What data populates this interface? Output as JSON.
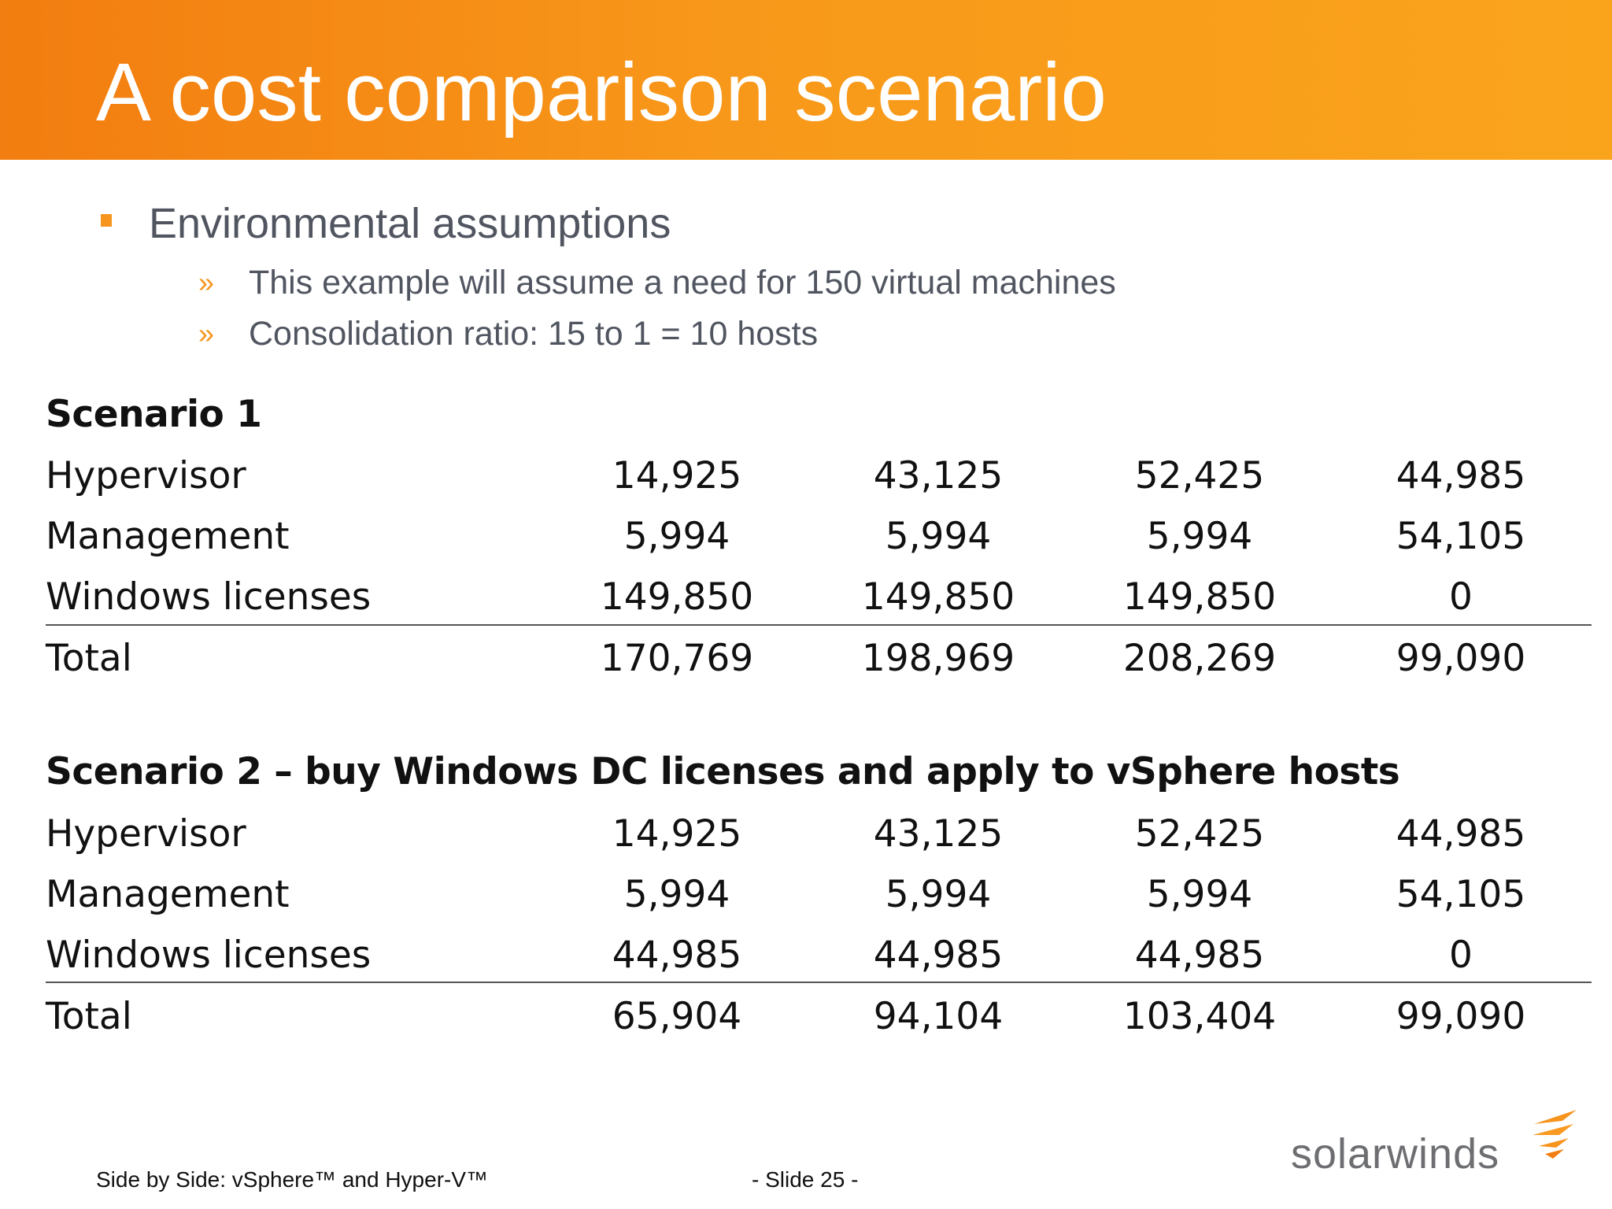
{
  "slide": {
    "title": "A cost comparison scenario",
    "bullet": "Environmental assumptions",
    "sub_bullet_marker": "»",
    "sub_bullets": [
      "This example will assume a need for 150 virtual machines",
      "Consolidation ratio: 15 to 1 = 10 hosts"
    ]
  },
  "scenario1": {
    "title": "Scenario 1",
    "rows": [
      {
        "label": "Hypervisor",
        "values": [
          "14,925",
          "43,125",
          "52,425",
          "44,985"
        ]
      },
      {
        "label": "Management",
        "values": [
          "5,994",
          "5,994",
          "5,994",
          "54,105"
        ]
      },
      {
        "label": "Windows licenses",
        "values": [
          "149,850",
          "149,850",
          "149,850",
          "0"
        ]
      },
      {
        "label": "Total",
        "values": [
          "170,769",
          "198,969",
          "208,269",
          "99,090"
        ]
      }
    ]
  },
  "scenario2": {
    "title": "Scenario 2 – buy Windows DC licenses and apply to vSphere hosts",
    "rows": [
      {
        "label": "Hypervisor",
        "values": [
          "14,925",
          "43,125",
          "52,425",
          "44,985"
        ]
      },
      {
        "label": "Management",
        "values": [
          "5,994",
          "5,994",
          "5,994",
          "54,105"
        ]
      },
      {
        "label": "Windows licenses",
        "values": [
          "44,985",
          "44,985",
          "44,985",
          "0"
        ]
      },
      {
        "label": "Total",
        "values": [
          "65,904",
          "94,104",
          "103,404",
          "99,090"
        ]
      }
    ]
  },
  "footer": {
    "left": "Side by Side: vSphere™ and Hyper-V™",
    "center": "- Slide 25 -",
    "logo_text": "solarwinds"
  },
  "colors": {
    "header_orange": "#f8981a",
    "accent_orange": "#f7941d",
    "body_text": "#505560",
    "logo_gray": "#6d6e71"
  }
}
